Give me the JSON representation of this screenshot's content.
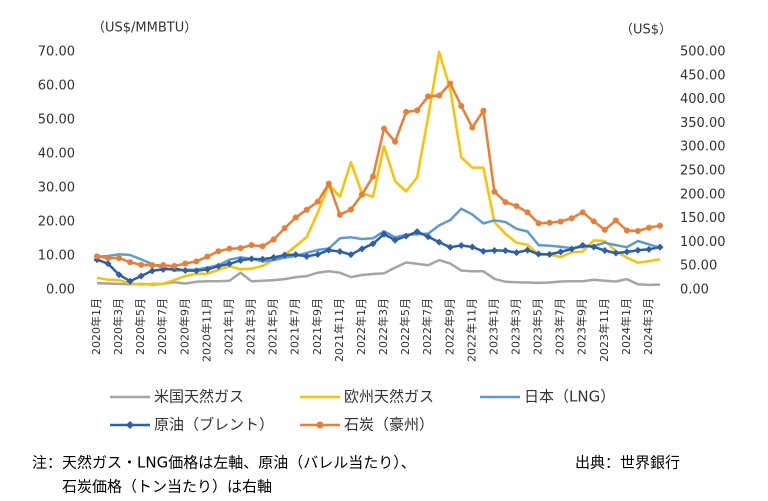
{
  "chart_data": {
    "type": "line",
    "y_label": "（US$/MMBTU）",
    "y2_label": "（US$）",
    "categories": [
      "2020年1月",
      null,
      "2020年3月",
      null,
      "2020年5月",
      null,
      "2020年7月",
      null,
      "2020年9月",
      null,
      "2020年11月",
      null,
      "2021年1月",
      null,
      "2021年3月",
      null,
      "2021年5月",
      null,
      "2021年7月",
      null,
      "2021年9月",
      null,
      "2021年11月",
      null,
      "2022年1月",
      null,
      "2022年3月",
      null,
      "2022年5月",
      null,
      "2022年7月",
      null,
      "2022年9月",
      null,
      "2022年11月",
      null,
      "2023年1月",
      null,
      "2023年3月",
      null,
      "2023年5月",
      null,
      "2023年7月",
      null,
      "2023年9月",
      null,
      "2023年11月",
      null,
      "2024年1月",
      null,
      "2024年3月",
      null
    ],
    "ylim": [
      0,
      70
    ],
    "yticks": [
      {
        "value": 0,
        "label": "0.00"
      },
      {
        "value": 10,
        "label": "10.00"
      },
      {
        "value": 20,
        "label": "20.00"
      },
      {
        "value": 30,
        "label": "30.00"
      },
      {
        "value": 40,
        "label": "40.00"
      },
      {
        "value": 50,
        "label": "50.00"
      },
      {
        "value": 60,
        "label": "60.00"
      },
      {
        "value": 70,
        "label": "70.00"
      }
    ],
    "y2lim": [
      0,
      500
    ],
    "y2ticks": [
      {
        "value": 0,
        "label": "0.00"
      },
      {
        "value": 50,
        "label": "50.00"
      },
      {
        "value": 100,
        "label": "100.00"
      },
      {
        "value": 150,
        "label": "150.00"
      },
      {
        "value": 200,
        "label": "200.00"
      },
      {
        "value": 250,
        "label": "250.00"
      },
      {
        "value": 300,
        "label": "300.00"
      },
      {
        "value": 350,
        "label": "350.00"
      },
      {
        "value": 400,
        "label": "400.00"
      },
      {
        "value": 450,
        "label": "450.00"
      },
      {
        "value": 500,
        "label": "500.00"
      }
    ],
    "series": [
      {
        "name": "米国天然ガス",
        "color": "#a5a5a5",
        "values": [
          2.0,
          1.9,
          1.8,
          1.7,
          1.8,
          1.6,
          1.8,
          2.3,
          1.9,
          2.4,
          2.6,
          2.6,
          2.7,
          5.1,
          2.6,
          2.7,
          2.9,
          3.2,
          3.8,
          4.1,
          5.1,
          5.5,
          5.1,
          3.8,
          4.4,
          4.7,
          4.9,
          6.6,
          8.1,
          7.7,
          7.3,
          8.8,
          7.8,
          5.7,
          5.5,
          5.5,
          3.3,
          2.4,
          2.3,
          2.2,
          2.1,
          2.2,
          2.5,
          2.6,
          2.6,
          3.0,
          2.7,
          2.5,
          3.2,
          1.7,
          1.5,
          1.6
        ]
      },
      {
        "name": "欧州天然ガス",
        "color": "#ffc000",
        "values": [
          3.6,
          3.0,
          2.9,
          1.9,
          1.6,
          1.8,
          1.8,
          2.9,
          4.1,
          4.8,
          4.8,
          5.9,
          7.0,
          6.1,
          6.3,
          7.1,
          8.9,
          10.3,
          12.9,
          15.6,
          22.8,
          31.1,
          27.4,
          37.6,
          28.5,
          27.4,
          42.3,
          32.0,
          29.0,
          33.1,
          51.0,
          70.0,
          59.0,
          39.0,
          36.0,
          36.0,
          20.0,
          16.5,
          13.9,
          13.3,
          10.4,
          10.4,
          9.7,
          11.1,
          11.3,
          14.6,
          14.4,
          11.5,
          9.5,
          8.0,
          8.5,
          9.0
        ]
      },
      {
        "name": "日本（LNG）",
        "color": "#5b9bd5",
        "values": [
          9.8,
          10.0,
          10.5,
          10.3,
          9.0,
          7.6,
          6.6,
          5.7,
          5.9,
          6.0,
          6.6,
          7.3,
          8.9,
          9.6,
          9.2,
          8.4,
          8.8,
          9.5,
          10.0,
          10.9,
          11.8,
          12.2,
          15.2,
          15.5,
          15.0,
          15.2,
          17.3,
          15.5,
          16.2,
          16.4,
          16.6,
          19.0,
          20.6,
          23.9,
          22.2,
          19.6,
          20.5,
          20.0,
          18.0,
          17.2,
          13.2,
          13.0,
          12.7,
          12.3,
          12.7,
          12.9,
          13.9,
          13.2,
          12.6,
          14.4,
          13.4,
          12.4
        ]
      },
      {
        "name": "原油（ブレント）",
        "color": "#2e5fa8",
        "axis": "y2",
        "marker": "diamond",
        "values": [
          63.7,
          55.5,
          32.0,
          18.5,
          29.4,
          40.3,
          43.2,
          44.7,
          40.9,
          40.5,
          43.2,
          49.9,
          54.8,
          62.3,
          65.4,
          64.8,
          68.3,
          73.4,
          74.3,
          70.5,
          74.9,
          83.7,
          80.8,
          74.3,
          86.5,
          97.1,
          117.3,
          104.6,
          113.3,
          122.7,
          111.9,
          100.5,
          89.8,
          93.6,
          90.4,
          81.3,
          83.1,
          82.6,
          78.5,
          83.8,
          75.5,
          74.8,
          80.1,
          86.2,
          93.7,
          90.6,
          82.9,
          77.6,
          80.1,
          83.5,
          85.4,
          90.1
        ]
      },
      {
        "name": "石炭（豪州）",
        "color": "#ed7d31",
        "axis": "y2",
        "marker": "circle",
        "values": [
          70.6,
          67.2,
          67.0,
          58.3,
          52.8,
          52.2,
          52.2,
          50.3,
          55.6,
          60.0,
          70.1,
          81.4,
          86.8,
          87.9,
          94.4,
          91.9,
          106.1,
          130.1,
          152.2,
          168.7,
          185.7,
          223.5,
          157.9,
          169.2,
          200.3,
          238.5,
          339.1,
          311.4,
          374.0,
          377.3,
          406.8,
          408.7,
          433.8,
          386.5,
          341.3,
          376.6,
          206.4,
          184.6,
          176.4,
          163.0,
          140.2,
          141.4,
          143.6,
          150.8,
          163.2,
          144.3,
          126.2,
          146.3,
          125.1,
          124.0,
          130.8,
          135.0
        ]
      }
    ],
    "notes": [
      "注：天然ガス・LNG価格は左軸、原油（バレル当たり）、",
      "石炭価格（トン当たり）は右軸"
    ],
    "source": "出典：世界銀行"
  }
}
